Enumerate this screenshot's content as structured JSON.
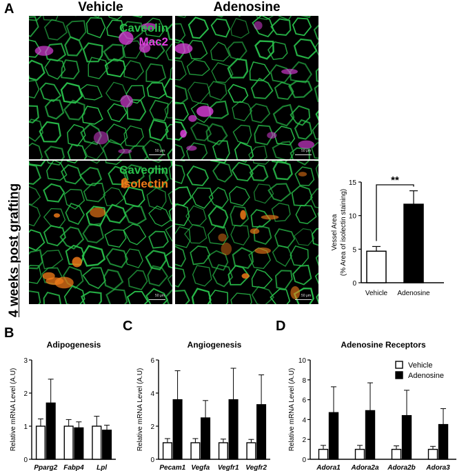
{
  "figure": {
    "panel_labels": [
      "A",
      "B",
      "C",
      "D"
    ],
    "col_vehicle": "Vehicle",
    "col_adenosine": "Adenosine",
    "side_label": "4 weeks post grafting",
    "stain_row1_line1": "Caveolin",
    "stain_row1_line2": "Mac2",
    "stain_row2_line1": "Caveolin",
    "stain_row2_line2": "Isolectin",
    "scale_bar": "50 μm",
    "colors": {
      "caveolin": "#29c04b",
      "mac2": "#e040e0",
      "isolectin": "#f07a18",
      "bar_vehicle": "#ffffff",
      "bar_adenosine": "#000000"
    },
    "legend": {
      "vehicle": "Vehicle",
      "adenosine": "Adenosine"
    }
  },
  "chart_data": [
    {
      "id": "A-vessel",
      "type": "bar",
      "title": "",
      "ylabel_line1": "Vessel Area",
      "ylabel_line2": "(% Area of isolectin staining)",
      "categories": [
        "Vehicle",
        "Adenosine"
      ],
      "values": [
        4.7,
        11.7
      ],
      "errors": [
        0.7,
        2.0
      ],
      "ylim": [
        0,
        15
      ],
      "yticks": [
        0,
        5,
        10,
        15
      ],
      "significance": "**"
    },
    {
      "id": "B",
      "type": "bar",
      "title": "Adipogenesis",
      "ylabel": "Relative mRNA Level (A.U)",
      "categories": [
        "Pparg2",
        "Fabp4",
        "Lpl"
      ],
      "ylim": [
        0,
        3
      ],
      "yticks": [
        0,
        1,
        2,
        3
      ],
      "series": [
        {
          "name": "Vehicle",
          "values": [
            1.0,
            1.0,
            1.0
          ],
          "errors": [
            0.22,
            0.2,
            0.3
          ]
        },
        {
          "name": "Adenosine",
          "values": [
            1.7,
            0.95,
            0.88
          ],
          "errors": [
            0.72,
            0.18,
            0.15
          ]
        }
      ]
    },
    {
      "id": "C",
      "type": "bar",
      "title": "Angiogenesis",
      "ylabel": "Relative mRNA Level (A.U)",
      "categories": [
        "Pecam1",
        "Vegfa",
        "Vegfr1",
        "Vegfr2"
      ],
      "ylim": [
        0,
        6
      ],
      "yticks": [
        0,
        2,
        4,
        6
      ],
      "series": [
        {
          "name": "Vehicle",
          "values": [
            1.0,
            1.0,
            1.0,
            1.0
          ],
          "errors": [
            0.25,
            0.25,
            0.22,
            0.2
          ]
        },
        {
          "name": "Adenosine",
          "values": [
            3.6,
            2.5,
            3.6,
            3.3
          ],
          "errors": [
            1.75,
            1.05,
            1.9,
            1.8
          ]
        }
      ]
    },
    {
      "id": "D",
      "type": "bar",
      "title": "Adenosine Receptors",
      "ylabel": "Relative mRNA Level (A.U)",
      "categories": [
        "Adora1",
        "Adora2a",
        "Adora2b",
        "Adora3"
      ],
      "ylim": [
        0,
        10
      ],
      "yticks": [
        0,
        2,
        4,
        6,
        8,
        10
      ],
      "series": [
        {
          "name": "Vehicle",
          "values": [
            1.0,
            1.0,
            1.0,
            1.0
          ],
          "errors": [
            0.4,
            0.4,
            0.35,
            0.3
          ]
        },
        {
          "name": "Adenosine",
          "values": [
            4.7,
            4.9,
            4.4,
            3.5
          ],
          "errors": [
            2.6,
            2.8,
            2.55,
            1.6
          ]
        }
      ]
    }
  ]
}
